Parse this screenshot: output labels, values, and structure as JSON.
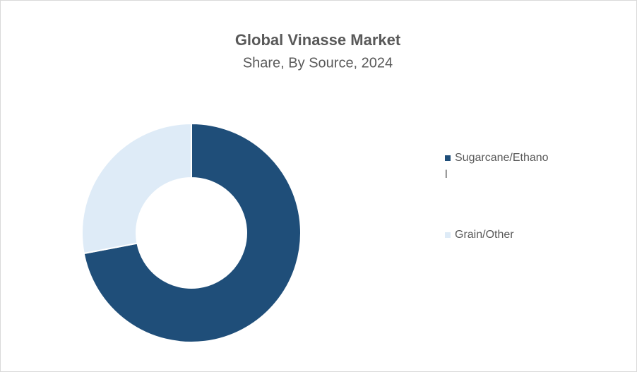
{
  "chart_data": {
    "type": "donut",
    "title": "Global Vinasse Market",
    "subtitle": "Share, By Source, 2024",
    "categories": [
      "Sugarcane/Ethanol",
      "Grain/Other"
    ],
    "values": [
      72,
      28
    ],
    "colors": [
      "#1f4e79",
      "#deebf7"
    ],
    "legend": "right"
  }
}
